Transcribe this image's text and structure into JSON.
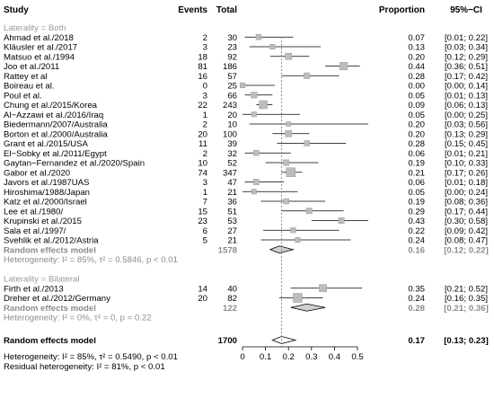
{
  "header": {
    "study": "Study",
    "events": "Events",
    "total": "Total",
    "proportion": "Proportion",
    "ci": "95%−CI"
  },
  "chart_data": {
    "type": "forest",
    "x_ticks": [
      "0",
      "0.1",
      "0.2",
      "0.3",
      "0.4",
      "0.5"
    ],
    "xlim": [
      0,
      0.5
    ],
    "reference_line": 0.17,
    "groups": [
      {
        "label": "Laterality = Both",
        "studies": [
          {
            "name": "Ahmad et al./2018",
            "events": 2,
            "total": 30,
            "prop": 0.07,
            "lo": 0.01,
            "hi": 0.22,
            "prop_text": "0.07",
            "ci_text": "[0.01; 0.22]"
          },
          {
            "name": "Kläusler et al./2017",
            "events": 3,
            "total": 23,
            "prop": 0.13,
            "lo": 0.03,
            "hi": 0.34,
            "prop_text": "0.13",
            "ci_text": "[0.03; 0.34]"
          },
          {
            "name": "Matsuo et al./1994",
            "events": 18,
            "total": 92,
            "prop": 0.2,
            "lo": 0.12,
            "hi": 0.29,
            "prop_text": "0.20",
            "ci_text": "[0.12; 0.29]"
          },
          {
            "name": "Joo et al./2011",
            "events": 81,
            "total": 186,
            "prop": 0.44,
            "lo": 0.36,
            "hi": 0.51,
            "prop_text": "0.44",
            "ci_text": "[0.36; 0.51]"
          },
          {
            "name": "Rattey et al",
            "events": 16,
            "total": 57,
            "prop": 0.28,
            "lo": 0.17,
            "hi": 0.42,
            "prop_text": "0.28",
            "ci_text": "[0.17; 0.42]"
          },
          {
            "name": "Boireau et al.",
            "events": 0,
            "total": 25,
            "prop": 0.0,
            "lo": 0.0,
            "hi": 0.14,
            "prop_text": "0.00",
            "ci_text": "[0.00; 0.14]"
          },
          {
            "name": "Poul et al.",
            "events": 3,
            "total": 66,
            "prop": 0.05,
            "lo": 0.01,
            "hi": 0.13,
            "prop_text": "0.05",
            "ci_text": "[0.01; 0.13]"
          },
          {
            "name": "Chung et al./2015/Korea",
            "events": 22,
            "total": 243,
            "prop": 0.09,
            "lo": 0.06,
            "hi": 0.13,
            "prop_text": "0.09",
            "ci_text": "[0.06; 0.13]"
          },
          {
            "name": "Al−Azzawi et al./2016/Iraq",
            "events": 1,
            "total": 20,
            "prop": 0.05,
            "lo": 0.0,
            "hi": 0.25,
            "prop_text": "0.05",
            "ci_text": "[0.00; 0.25]"
          },
          {
            "name": "Biedermann/2007/Australia",
            "events": 2,
            "total": 10,
            "prop": 0.2,
            "lo": 0.03,
            "hi": 0.56,
            "prop_text": "0.20",
            "ci_text": "[0.03; 0.56]"
          },
          {
            "name": "Borton et al./2000/Australia",
            "events": 20,
            "total": 100,
            "prop": 0.2,
            "lo": 0.13,
            "hi": 0.29,
            "prop_text": "0.20",
            "ci_text": "[0.13; 0.29]"
          },
          {
            "name": "Grant et al./2015/USA",
            "events": 11,
            "total": 39,
            "prop": 0.28,
            "lo": 0.15,
            "hi": 0.45,
            "prop_text": "0.28",
            "ci_text": "[0.15; 0.45]"
          },
          {
            "name": "El−Sobky et al./2011/Egypt",
            "events": 2,
            "total": 32,
            "prop": 0.06,
            "lo": 0.01,
            "hi": 0.21,
            "prop_text": "0.06",
            "ci_text": "[0.01; 0.21]"
          },
          {
            "name": "Gaytan−Fernandez et al./2020/Spain",
            "events": 10,
            "total": 52,
            "prop": 0.19,
            "lo": 0.1,
            "hi": 0.33,
            "prop_text": "0.19",
            "ci_text": "[0.10; 0.33]"
          },
          {
            "name": "Gabor et al./2020",
            "events": 74,
            "total": 347,
            "prop": 0.21,
            "lo": 0.17,
            "hi": 0.26,
            "prop_text": "0.21",
            "ci_text": "[0.17; 0.26]"
          },
          {
            "name": "Javors et al./1987UAS",
            "events": 3,
            "total": 47,
            "prop": 0.06,
            "lo": 0.01,
            "hi": 0.18,
            "prop_text": "0.06",
            "ci_text": "[0.01; 0.18]"
          },
          {
            "name": "Hiroshima/1988/Japan",
            "events": 1,
            "total": 21,
            "prop": 0.05,
            "lo": 0.0,
            "hi": 0.24,
            "prop_text": "0.05",
            "ci_text": "[0.00; 0.24]"
          },
          {
            "name": "Katz et al./2000/Israel",
            "events": 7,
            "total": 36,
            "prop": 0.19,
            "lo": 0.08,
            "hi": 0.36,
            "prop_text": "0.19",
            "ci_text": "[0.08; 0.36]"
          },
          {
            "name": "Lee et al./1980/",
            "events": 15,
            "total": 51,
            "prop": 0.29,
            "lo": 0.17,
            "hi": 0.44,
            "prop_text": "0.29",
            "ci_text": "[0.17; 0.44]"
          },
          {
            "name": "Krupinski et al./2015",
            "events": 23,
            "total": 53,
            "prop": 0.43,
            "lo": 0.3,
            "hi": 0.58,
            "prop_text": "0.43",
            "ci_text": "[0.30; 0.58]"
          },
          {
            "name": "Sala et al./1997/",
            "events": 6,
            "total": 27,
            "prop": 0.22,
            "lo": 0.09,
            "hi": 0.42,
            "prop_text": "0.22",
            "ci_text": "[0.09; 0.42]"
          },
          {
            "name": "Svehlik et al./2012/Astria",
            "events": 5,
            "total": 21,
            "prop": 0.24,
            "lo": 0.08,
            "hi": 0.47,
            "prop_text": "0.24",
            "ci_text": "[0.08; 0.47]"
          }
        ],
        "summary": {
          "label": "Random effects model",
          "total": 1578,
          "prop": 0.16,
          "lo": 0.12,
          "hi": 0.22,
          "prop_text": "0.16",
          "ci_text": "[0.12; 0.22]"
        },
        "heterogeneity": "Heterogeneity: I² = 85%, τ² = 0.5846, p < 0.01"
      },
      {
        "label": "Laterality = Bilateral",
        "studies": [
          {
            "name": "Firth et al./2013",
            "events": 14,
            "total": 40,
            "prop": 0.35,
            "lo": 0.21,
            "hi": 0.52,
            "prop_text": "0.35",
            "ci_text": "[0.21; 0.52]"
          },
          {
            "name": "Dreher et al./2012/Germany",
            "events": 20,
            "total": 82,
            "prop": 0.24,
            "lo": 0.16,
            "hi": 0.35,
            "prop_text": "0.24",
            "ci_text": "[0.16; 0.35]"
          }
        ],
        "summary": {
          "label": "Random effects model",
          "total": 122,
          "prop": 0.28,
          "lo": 0.21,
          "hi": 0.36,
          "prop_text": "0.28",
          "ci_text": "[0.21; 0.36]"
        },
        "heterogeneity": "Heterogeneity: I² = 0%, τ² = 0, p = 0.22"
      }
    ],
    "overall": {
      "label": "Random effects model",
      "total": 1700,
      "prop": 0.17,
      "lo": 0.13,
      "hi": 0.23,
      "prop_text": "0.17",
      "ci_text": "[0.13; 0.23]"
    },
    "footer": [
      "Heterogeneity: I² = 85%, τ² = 0.5490, p < 0.01",
      "Residual heterogeneity: I² = 81%, p < 0.01"
    ]
  }
}
